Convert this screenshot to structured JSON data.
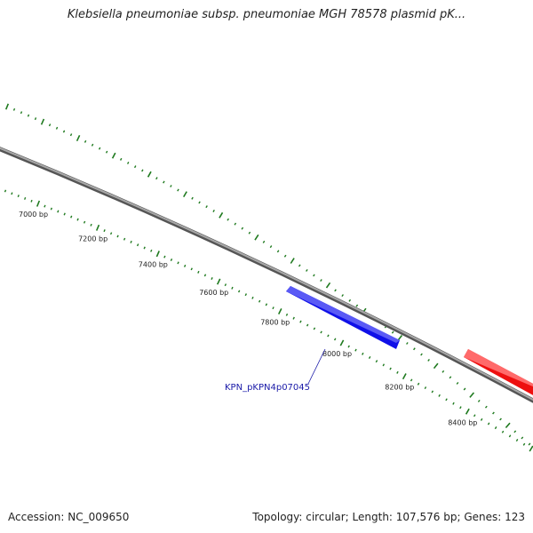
{
  "title": "Klebsiella pneumoniae subsp. pneumoniae MGH 78578 plasmid pK...",
  "footer": {
    "accession": "Accession: NC_009650",
    "summary": "Topology: circular; Length: 107,576 bp; Genes: 123"
  },
  "map": {
    "backbone_color": "#808080",
    "tick_color": "#1f7a1f",
    "scale_labels": [
      "7000 bp",
      "7200 bp",
      "7400 bp",
      "7600 bp",
      "7800 bp",
      "8000 bp",
      "8200 bp",
      "8400 bp"
    ],
    "genes": [
      {
        "label": "KPN_pKPN4p07045",
        "strand": "minus",
        "color": "#1010e8"
      },
      {
        "label": "",
        "strand": "plus",
        "color": "#ee1010"
      }
    ]
  }
}
